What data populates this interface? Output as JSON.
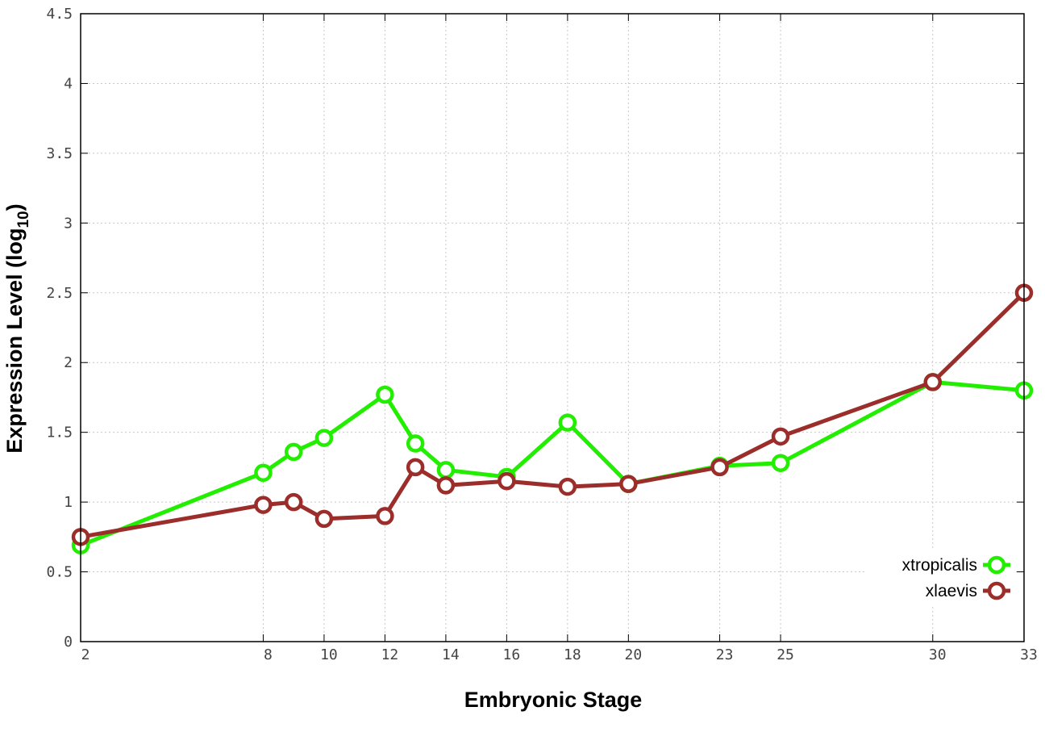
{
  "chart_data": {
    "type": "line",
    "xlabel": "Embryonic Stage",
    "ylabel_main": "Expression Level (log",
    "ylabel_sub": "10",
    "ylabel_close": ")",
    "x": [
      2,
      8,
      9,
      10,
      12,
      13,
      14,
      16,
      18,
      20,
      23,
      25,
      30,
      33
    ],
    "xticks": [
      2,
      8,
      10,
      12,
      14,
      16,
      18,
      20,
      23,
      25,
      30,
      33
    ],
    "xtick_labels": [
      "2",
      "8",
      "10",
      "12",
      "14",
      "16",
      "18",
      "20",
      "23",
      "25",
      "30",
      "33"
    ],
    "yticks": [
      0,
      0.5,
      1,
      1.5,
      2,
      2.5,
      3,
      3.5,
      4,
      4.5
    ],
    "ytick_labels": [
      "0",
      "0.5",
      "1",
      "1.5",
      "2",
      "2.5",
      "3",
      "3.5",
      "4",
      "4.5"
    ],
    "xlim": [
      2,
      33
    ],
    "ylim": [
      0,
      4.5
    ],
    "grid": true,
    "legend_position": "bottom-right",
    "series": [
      {
        "name": "xtropicalis",
        "color": "#22ee00",
        "values": [
          0.69,
          1.21,
          1.36,
          1.46,
          1.77,
          1.42,
          1.23,
          1.18,
          1.57,
          1.13,
          1.26,
          1.28,
          1.86,
          1.8
        ]
      },
      {
        "name": "xlaevis",
        "color": "#9b2d2a",
        "values": [
          0.75,
          0.98,
          1.0,
          0.88,
          0.9,
          1.25,
          1.12,
          1.15,
          1.11,
          1.13,
          1.25,
          1.47,
          1.86,
          2.5
        ]
      }
    ]
  }
}
